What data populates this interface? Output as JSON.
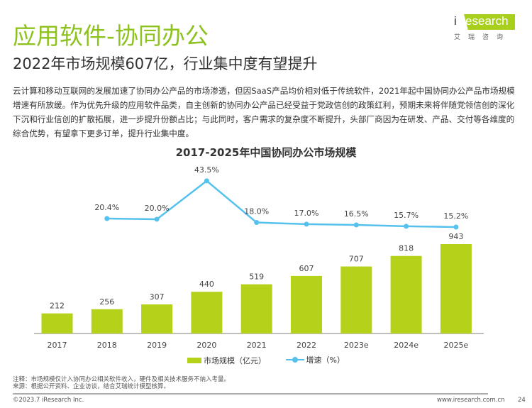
{
  "header": {
    "title": "应用软件-协同办公",
    "subtitle": "2022年市场规模607亿，行业集中度有望提升",
    "logo": {
      "brand": "iResearch",
      "brand_cn": "艾瑞咨询"
    }
  },
  "body_text": "云计算和移动互联网的发展加速了协同办公产品的市场渗透，但因SaaS产品均价相对低于传统软件，2021年起中国协同办公产品市场规模增速有所放缓。作为优先升级的应用软件品类，自主创新的协同办公产品已经受益于党政信创的政策红利，预期未来将伴随党领信创的深化下沉和行业信创的扩散拓展，进一步提升份额占比；与此同时，客户需求的复杂度不断提升，头部厂商因为在研发、产品、交付等各维度的综合优势，有望拿下更多订单，提升行业集中度。",
  "chart_data": {
    "type": "bar+line",
    "title": "2017-2025年中国协同办公市场规模",
    "categories": [
      "2017",
      "2018",
      "2019",
      "2020",
      "2021",
      "2022",
      "2023e",
      "2024e",
      "2025e"
    ],
    "series": [
      {
        "name": "市场规模（亿元）",
        "type": "bar",
        "values": [
          212,
          256,
          307,
          440,
          519,
          607,
          707,
          818,
          943
        ],
        "color": "#b5d11a"
      },
      {
        "name": "增速（%）",
        "type": "line",
        "values": [
          null,
          20.4,
          20.0,
          43.5,
          18.0,
          17.0,
          16.5,
          15.7,
          15.2
        ],
        "labels": [
          "",
          "20.4%",
          "20.0%",
          "43.5%",
          "18.0%",
          "17.0%",
          "16.5%",
          "15.7%",
          "15.2%"
        ],
        "color": "#55c1ec"
      }
    ],
    "legend_position": "bottom",
    "grid": false
  },
  "notes": {
    "note": "注释：市场规模仅计入协同办公相关软件收入，硬件及相关技术服务不纳入考量。",
    "source": "来源：根据公开资料、企业访谈，结合艾瑞统计模型核算。"
  },
  "footer": {
    "copyright": "©2023.7 iResearch Inc.",
    "site": "www.iresearch.com.cn",
    "page": "24"
  }
}
